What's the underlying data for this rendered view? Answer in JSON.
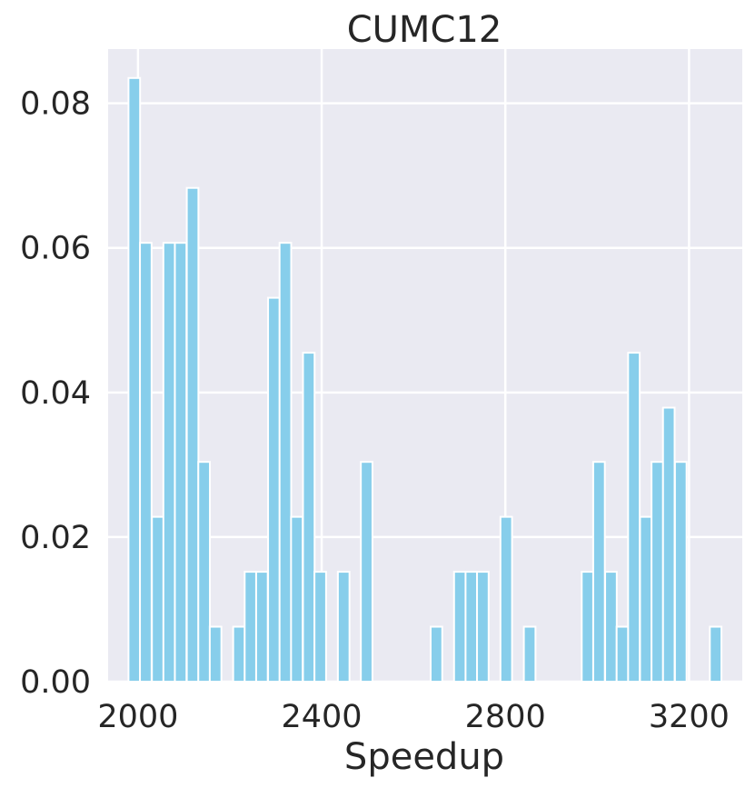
{
  "chart_data": {
    "type": "bar",
    "title": "CUMC12",
    "xlabel": "Speedup",
    "ylabel": "",
    "xlim": [
      1935,
      3316
    ],
    "ylim": [
      0,
      0.0875
    ],
    "grid": true,
    "bar_width": 25.3,
    "colors": {
      "bar": "#87ceeb",
      "bar_edge": "#ffffff",
      "plot_bg": "#eaeaf2",
      "grid": "#ffffff",
      "text": "#262626"
    },
    "xticks": [
      2000,
      2400,
      2800,
      3200
    ],
    "xtick_labels": [
      "2000",
      "2400",
      "2800",
      "3200"
    ],
    "yticks": [
      0.0,
      0.02,
      0.04,
      0.06,
      0.08
    ],
    "ytick_labels": [
      "0.00",
      "0.02",
      "0.04",
      "0.06",
      "0.08"
    ],
    "bars": [
      {
        "x": 1992,
        "value": 0.0835
      },
      {
        "x": 2017,
        "value": 0.0607
      },
      {
        "x": 2043,
        "value": 0.0228
      },
      {
        "x": 2068,
        "value": 0.0607
      },
      {
        "x": 2093,
        "value": 0.0607
      },
      {
        "x": 2119,
        "value": 0.0683
      },
      {
        "x": 2144,
        "value": 0.0304
      },
      {
        "x": 2169,
        "value": 0.0076
      },
      {
        "x": 2220,
        "value": 0.0076
      },
      {
        "x": 2245,
        "value": 0.0152
      },
      {
        "x": 2270,
        "value": 0.0152
      },
      {
        "x": 2296,
        "value": 0.0531
      },
      {
        "x": 2321,
        "value": 0.0607
      },
      {
        "x": 2346,
        "value": 0.0228
      },
      {
        "x": 2372,
        "value": 0.0455
      },
      {
        "x": 2397,
        "value": 0.0152
      },
      {
        "x": 2448,
        "value": 0.0152
      },
      {
        "x": 2498,
        "value": 0.0304
      },
      {
        "x": 2650,
        "value": 0.0076
      },
      {
        "x": 2701,
        "value": 0.0152
      },
      {
        "x": 2726,
        "value": 0.0152
      },
      {
        "x": 2751,
        "value": 0.0152
      },
      {
        "x": 2802,
        "value": 0.0228
      },
      {
        "x": 2853,
        "value": 0.0076
      },
      {
        "x": 2979,
        "value": 0.0152
      },
      {
        "x": 3004,
        "value": 0.0304
      },
      {
        "x": 3030,
        "value": 0.0152
      },
      {
        "x": 3055,
        "value": 0.0076
      },
      {
        "x": 3080,
        "value": 0.0455
      },
      {
        "x": 3106,
        "value": 0.0228
      },
      {
        "x": 3131,
        "value": 0.0304
      },
      {
        "x": 3156,
        "value": 0.0379
      },
      {
        "x": 3182,
        "value": 0.0304
      },
      {
        "x": 3258,
        "value": 0.0076
      }
    ]
  }
}
